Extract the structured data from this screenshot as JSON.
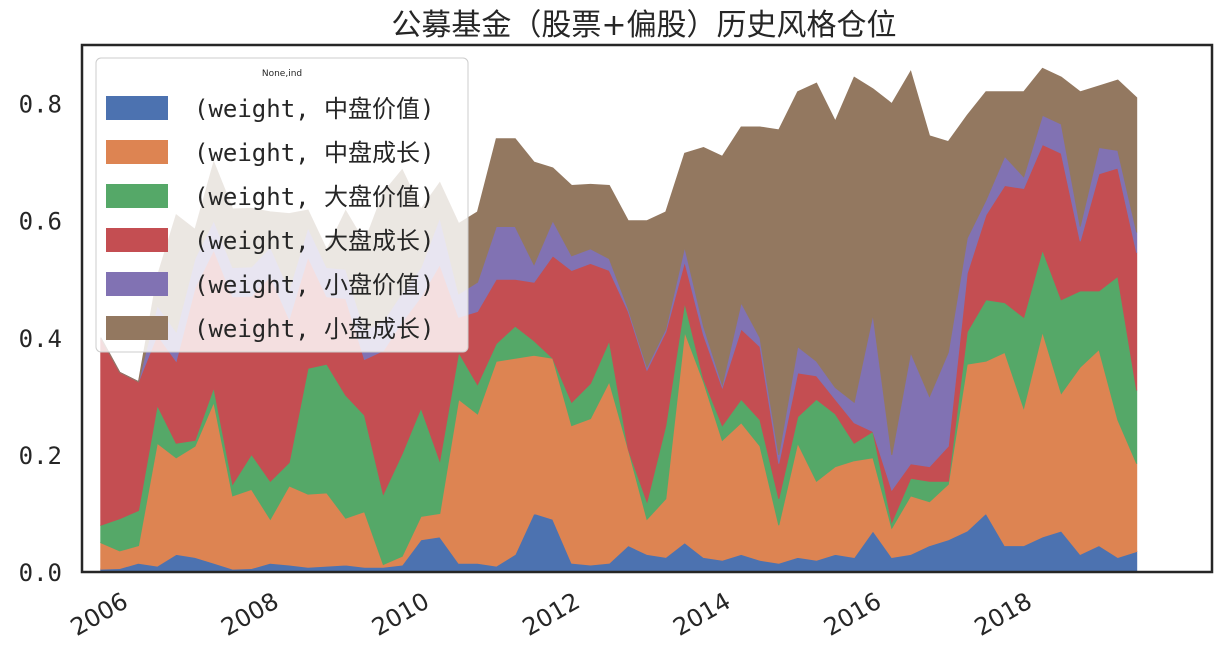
{
  "chart_data": {
    "type": "area",
    "stacked": true,
    "title": "公募基金（股票+偏股）历史风格仓位",
    "xlabel": "",
    "ylabel": "",
    "xlim": [
      2005.5,
      2020.5
    ],
    "ylim": [
      0.0,
      0.9
    ],
    "x_ticks": [
      2006,
      2008,
      2010,
      2012,
      2014,
      2016,
      2018
    ],
    "x_tick_labels": [
      "2006",
      "2008",
      "2010",
      "2012",
      "2014",
      "2016",
      "2018"
    ],
    "y_ticks": [
      0.0,
      0.2,
      0.4,
      0.6,
      0.8
    ],
    "y_tick_labels": [
      "0.0",
      "0.2",
      "0.4",
      "0.6",
      "0.8"
    ],
    "grid": false,
    "legend": {
      "title": "None,ind",
      "location": "upper-left"
    },
    "x": [
      2005.75,
      2006.0,
      2006.25,
      2006.5,
      2006.75,
      2007.0,
      2007.25,
      2007.5,
      2007.75,
      2008.0,
      2008.25,
      2008.5,
      2008.75,
      2009.0,
      2009.25,
      2009.5,
      2009.75,
      2010.0,
      2010.25,
      2010.5,
      2010.75,
      2011.0,
      2011.25,
      2011.5,
      2011.75,
      2012.0,
      2012.25,
      2012.5,
      2012.75,
      2013.0,
      2013.25,
      2013.5,
      2013.75,
      2014.0,
      2014.25,
      2014.5,
      2014.75,
      2015.0,
      2015.25,
      2015.5,
      2015.75,
      2016.0,
      2016.25,
      2016.5,
      2016.75,
      2017.0,
      2017.25,
      2017.5,
      2017.75,
      2018.0,
      2018.25,
      2018.5,
      2018.75,
      2019.0,
      2019.25,
      2019.5
    ],
    "series": [
      {
        "name": "(weight, 中盘价值)",
        "color": "#4c72b0",
        "values": [
          0.005,
          0.006,
          0.015,
          0.01,
          0.03,
          0.025,
          0.015,
          0.005,
          0.006,
          0.015,
          0.012,
          0.008,
          0.01,
          0.012,
          0.008,
          0.008,
          0.012,
          0.055,
          0.06,
          0.015,
          0.015,
          0.01,
          0.03,
          0.1,
          0.09,
          0.015,
          0.012,
          0.015,
          0.045,
          0.03,
          0.025,
          0.05,
          0.025,
          0.02,
          0.03,
          0.02,
          0.015,
          0.025,
          0.02,
          0.03,
          0.025,
          0.07,
          0.025,
          0.03,
          0.045,
          0.055,
          0.07,
          0.1,
          0.045,
          0.045,
          0.06,
          0.07,
          0.03,
          0.045,
          0.025,
          0.035
        ]
      },
      {
        "name": "(weight, 中盘成长)",
        "color": "#dd8452",
        "values": [
          0.045,
          0.03,
          0.03,
          0.21,
          0.165,
          0.19,
          0.275,
          0.125,
          0.135,
          0.075,
          0.135,
          0.125,
          0.125,
          0.08,
          0.095,
          0.005,
          0.015,
          0.04,
          0.04,
          0.28,
          0.255,
          0.35,
          0.335,
          0.27,
          0.275,
          0.235,
          0.25,
          0.31,
          0.165,
          0.06,
          0.1,
          0.36,
          0.3,
          0.205,
          0.225,
          0.195,
          0.065,
          0.195,
          0.135,
          0.15,
          0.165,
          0.125,
          0.05,
          0.1,
          0.075,
          0.095,
          0.285,
          0.26,
          0.33,
          0.235,
          0.35,
          0.235,
          0.32,
          0.335,
          0.235,
          0.15
        ]
      },
      {
        "name": "(weight, 大盘价值)",
        "color": "#55a868",
        "values": [
          0.03,
          0.055,
          0.06,
          0.065,
          0.025,
          0.01,
          0.025,
          0.02,
          0.06,
          0.065,
          0.04,
          0.215,
          0.22,
          0.21,
          0.165,
          0.12,
          0.175,
          0.185,
          0.09,
          0.08,
          0.05,
          0.03,
          0.055,
          0.025,
          0.0,
          0.04,
          0.06,
          0.07,
          0.0,
          0.03,
          0.125,
          0.05,
          0.005,
          0.025,
          0.04,
          0.045,
          0.045,
          0.045,
          0.14,
          0.09,
          0.03,
          0.045,
          0.01,
          0.03,
          0.035,
          0.005,
          0.055,
          0.105,
          0.085,
          0.155,
          0.14,
          0.16,
          0.13,
          0.1,
          0.245,
          0.125
        ]
      },
      {
        "name": "(weight, 大盘成长)",
        "color": "#c44e52",
        "values": [
          0.32,
          0.25,
          0.22,
          0.12,
          0.14,
          0.26,
          0.235,
          0.32,
          0.27,
          0.35,
          0.245,
          0.19,
          0.115,
          0.165,
          0.095,
          0.245,
          0.225,
          0.19,
          0.335,
          0.06,
          0.125,
          0.11,
          0.08,
          0.1,
          0.175,
          0.225,
          0.205,
          0.12,
          0.235,
          0.225,
          0.16,
          0.07,
          0.075,
          0.065,
          0.12,
          0.125,
          0.06,
          0.075,
          0.04,
          0.025,
          0.035,
          0.0,
          0.055,
          0.025,
          0.025,
          0.06,
          0.1,
          0.145,
          0.2,
          0.22,
          0.18,
          0.25,
          0.085,
          0.2,
          0.185,
          0.235
        ]
      },
      {
        "name": "(weight, 小盘价值)",
        "color": "#8172b3",
        "values": [
          0.0,
          0.0,
          0.0,
          0.05,
          0.05,
          0.05,
          0.05,
          0.05,
          0.05,
          0.05,
          0.05,
          0.05,
          0.05,
          0.05,
          0.05,
          0.05,
          0.05,
          0.05,
          0.08,
          0.04,
          0.05,
          0.09,
          0.09,
          0.03,
          0.06,
          0.025,
          0.025,
          0.02,
          0.005,
          0.005,
          0.005,
          0.025,
          0.015,
          0.005,
          0.045,
          0.015,
          0.015,
          0.045,
          0.025,
          0.02,
          0.035,
          0.2,
          0.06,
          0.19,
          0.12,
          0.16,
          0.06,
          0.025,
          0.05,
          0.02,
          0.05,
          0.05,
          0.025,
          0.045,
          0.03,
          0.035
        ]
      },
      {
        "name": "(weight, 小盘成长)",
        "color": "#937860",
        "values": [
          0.0,
          0.0,
          0.0,
          0.05,
          0.2,
          0.05,
          0.1,
          0.1,
          0.1,
          0.06,
          0.13,
          0.03,
          0.03,
          0.1,
          0.15,
          0.22,
          0.21,
          0.1,
          0.06,
          0.12,
          0.12,
          0.15,
          0.15,
          0.175,
          0.09,
          0.12,
          0.11,
          0.125,
          0.15,
          0.25,
          0.2,
          0.16,
          0.305,
          0.39,
          0.3,
          0.36,
          0.555,
          0.435,
          0.475,
          0.455,
          0.555,
          0.385,
          0.6,
          0.48,
          0.445,
          0.36,
          0.21,
          0.185,
          0.11,
          0.145,
          0.08,
          0.08,
          0.23,
          0.105,
          0.12,
          0.23
        ]
      }
    ]
  }
}
